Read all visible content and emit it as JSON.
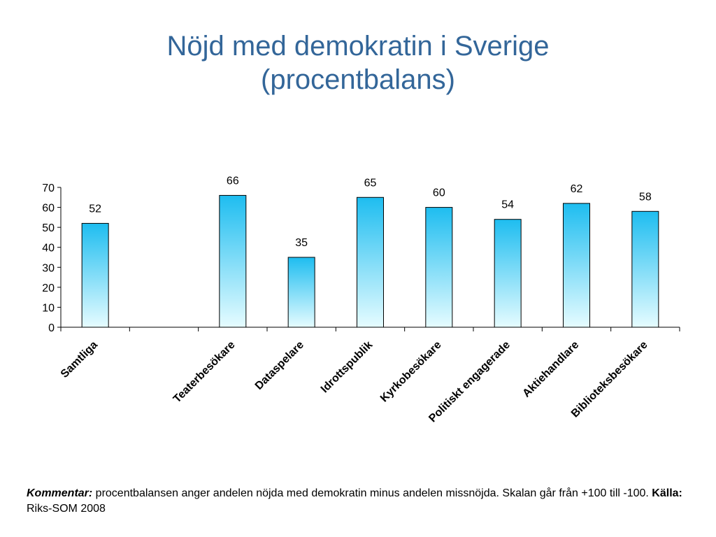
{
  "title_line1": "Nöjd med demokratin i Sverige",
  "title_line2": "(procentbalans)",
  "chart_data": {
    "type": "bar",
    "categories": [
      "Samtliga",
      "",
      "Teaterbesökare",
      "Dataspelare",
      "Idrottspublik",
      "Kyrkobesökare",
      "Politiskt engagerade",
      "Aktiehandlare",
      "Biblioteksbesökare"
    ],
    "values": [
      52,
      null,
      66,
      35,
      65,
      60,
      54,
      62,
      58
    ],
    "ylim": [
      0,
      70
    ],
    "yticks": [
      0,
      10,
      20,
      30,
      40,
      50,
      60,
      70
    ],
    "xlabel": "",
    "ylabel": "",
    "grid": false,
    "bar_gradient": {
      "top": "#1ebdf0",
      "bottom": "#e6fcff",
      "stroke": "#000000"
    }
  },
  "comment": {
    "kommentar_label": "Kommentar:",
    "kommentar_text": " procentbalansen anger andelen nöjda med demokratin minus andelen missnöjda. Skalan går från +100 till -100. ",
    "kalla_label": "Källa:",
    "kalla_text": " Riks-SOM 2008"
  }
}
